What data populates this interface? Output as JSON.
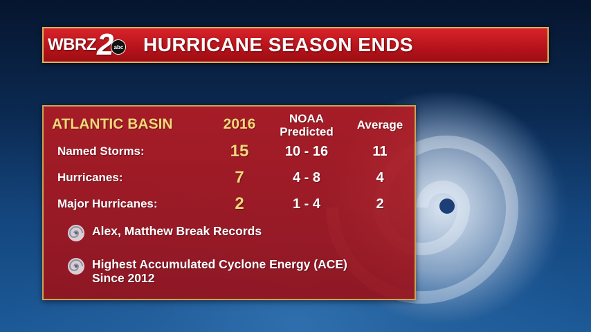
{
  "header": {
    "logo_text": "WBRZ",
    "logo_number": "2",
    "network_badge": "abc",
    "title": "HURRICANE SEASON ENDS"
  },
  "table": {
    "title": "ATLANTIC BASIN",
    "columns": {
      "year": "2016",
      "noaa": "NOAA\nPredicted",
      "average": "Average"
    },
    "rows": [
      {
        "label": "Named Storms:",
        "year": "15",
        "noaa": "10 - 16",
        "average": "11"
      },
      {
        "label": "Hurricanes:",
        "year": "7",
        "noaa": "4 - 8",
        "average": "4"
      },
      {
        "label": "Major Hurricanes:",
        "year": "2",
        "noaa": "1 - 4",
        "average": "2"
      }
    ]
  },
  "notes": [
    {
      "icon": "hurricane-icon",
      "text": "Alex, Matthew Break Records"
    },
    {
      "icon": "hurricane-icon",
      "text": "Highest Accumulated Cyclone Energy (ACE)\nSince 2012"
    }
  ],
  "colors": {
    "header_red": "#c41a21",
    "panel_red": "#a8161f",
    "gold_accent": "#f3d77a",
    "border_gold": "#c9a554"
  }
}
